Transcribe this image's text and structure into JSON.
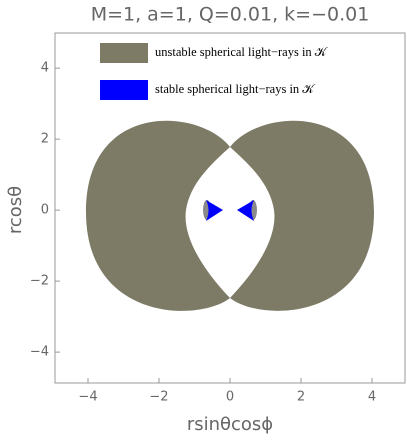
{
  "chart_data": {
    "type": "region",
    "title": "M=1, a=1, Q=0.01, k=−0.01",
    "xlabel": "rsinθcosϕ",
    "ylabel": "rcosθ",
    "xlim": [
      -4.93,
      4.93
    ],
    "ylim": [
      -4.87,
      4.99
    ],
    "xticks": [
      {
        "value": -4,
        "label": "−4"
      },
      {
        "value": -2,
        "label": "−2"
      },
      0,
      2,
      4
    ],
    "yticks": [
      {
        "value": -4,
        "label": "−4"
      },
      {
        "value": -2,
        "label": "−2"
      },
      0,
      2,
      4
    ],
    "series": [
      {
        "name": "unstable spherical light−rays in 𝒦",
        "color": "#7d7a65"
      },
      {
        "name": "stable spherical light−rays in 𝒦",
        "color": "#0000ff"
      }
    ]
  }
}
